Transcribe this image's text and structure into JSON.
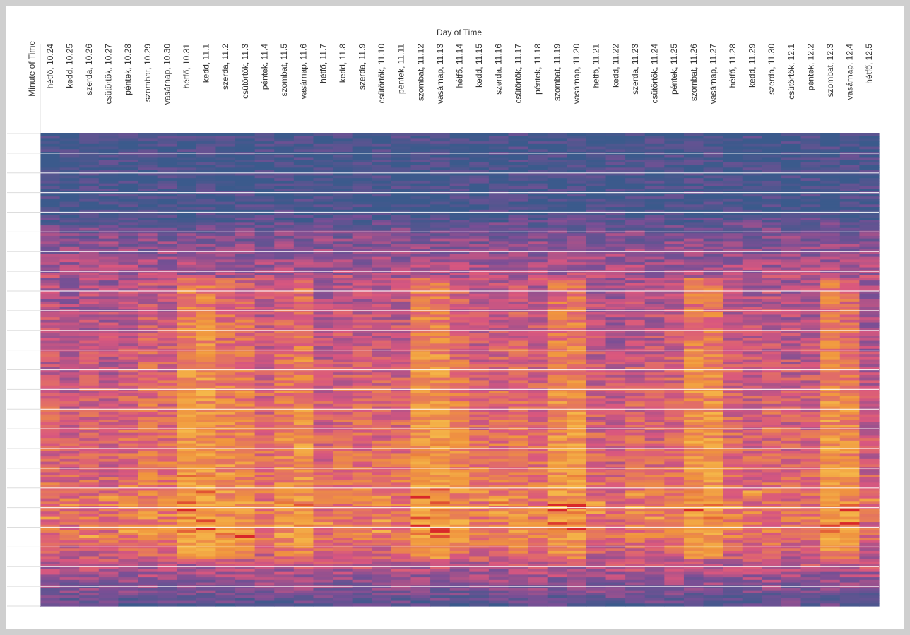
{
  "chart_data": {
    "type": "heatmap",
    "title": "",
    "xlabel": "Day of Time",
    "ylabel": "Minute of Time",
    "categories": [
      "hétfő, 10.24",
      "kedd, 10.25",
      "szerda, 10.26",
      "csütörtök, 10.27",
      "péntek, 10.28",
      "szombat, 10.29",
      "vasárnap, 10.30",
      "hétfő, 10.31",
      "kedd, 11.1",
      "szerda, 11.2",
      "csütörtök, 11.3",
      "péntek, 11.4",
      "szombat, 11.5",
      "vasárnap, 11.6",
      "hétfő, 11.7",
      "kedd, 11.8",
      "szerda, 11.9",
      "csütörtök, 11.10",
      "péntek, 11.11",
      "szombat, 11.12",
      "vasárnap, 11.13",
      "hétfő, 11.14",
      "kedd, 11.15",
      "szerda, 11.16",
      "csütörtök, 11.17",
      "péntek, 11.18",
      "szombat, 11.19",
      "vasárnap, 11.20",
      "hétfő, 11.21",
      "kedd, 11.22",
      "szerda, 11.23",
      "csütörtök, 11.24",
      "péntek, 11.25",
      "szombat, 11.26",
      "vasárnap, 11.27",
      "hétfő, 11.28",
      "kedd, 11.29",
      "szerda, 11.30",
      "csütörtök, 12.1",
      "péntek, 12.2",
      "szombat, 12.3",
      "vasárnap, 12.4",
      "hétfő, 12.5"
    ],
    "grid": true,
    "legend": "none",
    "colors": {
      "low": "#3b5a8c",
      "low_mid": "#7a4f95",
      "mid": "#d9577f",
      "high_mid": "#f0943e",
      "high": "#f5b84a",
      "peak": "#d8282a",
      "grid": "#ffffff",
      "background": "#ffffff",
      "frame": "#cfcfcf",
      "label": "#333333"
    },
    "day_profile": [
      0.55,
      0.5,
      0.55,
      0.52,
      0.6,
      0.7,
      0.65,
      1.0,
      1.0,
      0.85,
      0.85,
      0.62,
      0.8,
      0.9,
      0.55,
      0.62,
      0.62,
      0.6,
      0.62,
      1.0,
      1.0,
      0.78,
      0.62,
      0.68,
      0.72,
      0.65,
      0.92,
      0.95,
      0.55,
      0.48,
      0.58,
      0.56,
      0.62,
      0.95,
      0.95,
      0.6,
      0.55,
      0.6,
      0.52,
      0.55,
      0.95,
      0.85,
      0.45
    ]
  }
}
